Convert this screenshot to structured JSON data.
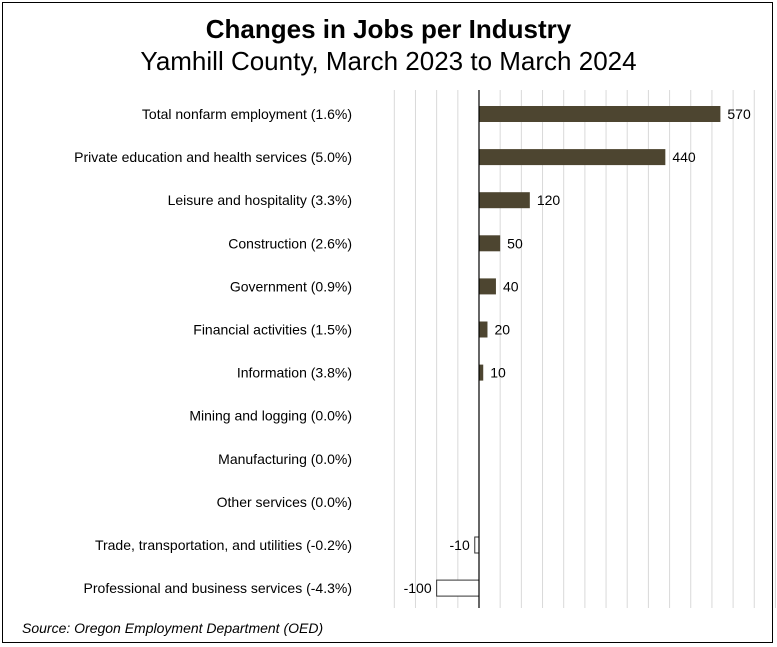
{
  "chart_data": {
    "type": "bar",
    "orientation": "horizontal",
    "title": "Changes in Jobs per Industry",
    "subtitle": "Yamhill County, March 2023 to March 2024",
    "categories": [
      "Total nonfarm employment (1.6%)",
      "Private education and health services (5.0%)",
      "Leisure and hospitality (3.3%)",
      "Construction (2.6%)",
      "Government (0.9%)",
      "Financial activities (1.5%)",
      "Information (3.8%)",
      "Mining and logging (0.0%)",
      "Manufacturing (0.0%)",
      "Other services (0.0%)",
      "Trade, transportation, and utilities (-0.2%)",
      "Professional and business services (-4.3%)"
    ],
    "values": [
      570,
      440,
      120,
      50,
      40,
      20,
      10,
      0,
      0,
      0,
      -10,
      -100
    ],
    "data_labels": [
      "570",
      "440",
      "120",
      "50",
      "40",
      "20",
      "10",
      "",
      "",
      "",
      "-10",
      "-100"
    ],
    "xlim": [
      -200,
      700
    ],
    "grid": true,
    "source": "Source: Oregon Employment Department (OED)",
    "colors": {
      "positive": "#4d4530",
      "negative": "#ffffff",
      "negative_stroke": "#333333",
      "grid": "#d9d9d9"
    }
  }
}
